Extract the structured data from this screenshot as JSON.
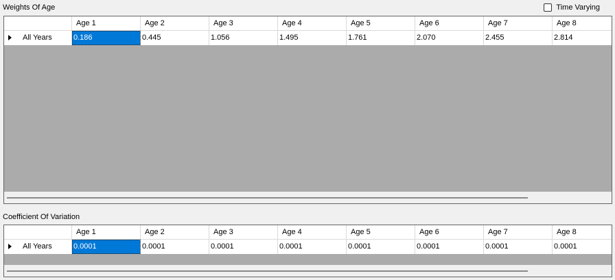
{
  "time_varying": {
    "label": "Time Varying",
    "checked": false
  },
  "weights": {
    "title": "Weights Of Age",
    "columns": [
      "Age 1",
      "Age 2",
      "Age 3",
      "Age 4",
      "Age 5",
      "Age 6",
      "Age 7",
      "Age 8"
    ],
    "row_label": "All Years",
    "values": [
      "0.186",
      "0.445",
      "1.056",
      "1.495",
      "1.761",
      "2.070",
      "2.455",
      "2.814"
    ]
  },
  "cv": {
    "title": "Coefficient Of Variation",
    "columns": [
      "Age 1",
      "Age 2",
      "Age 3",
      "Age 4",
      "Age 5",
      "Age 6",
      "Age 7",
      "Age 8"
    ],
    "row_label": "All Years",
    "values": [
      "0.0001",
      "0.0001",
      "0.0001",
      "0.0001",
      "0.0001",
      "0.0001",
      "0.0001",
      "0.0001"
    ]
  },
  "icons": {
    "row_indicator": "triangle-right-icon",
    "checkbox": "checkbox-icon"
  }
}
